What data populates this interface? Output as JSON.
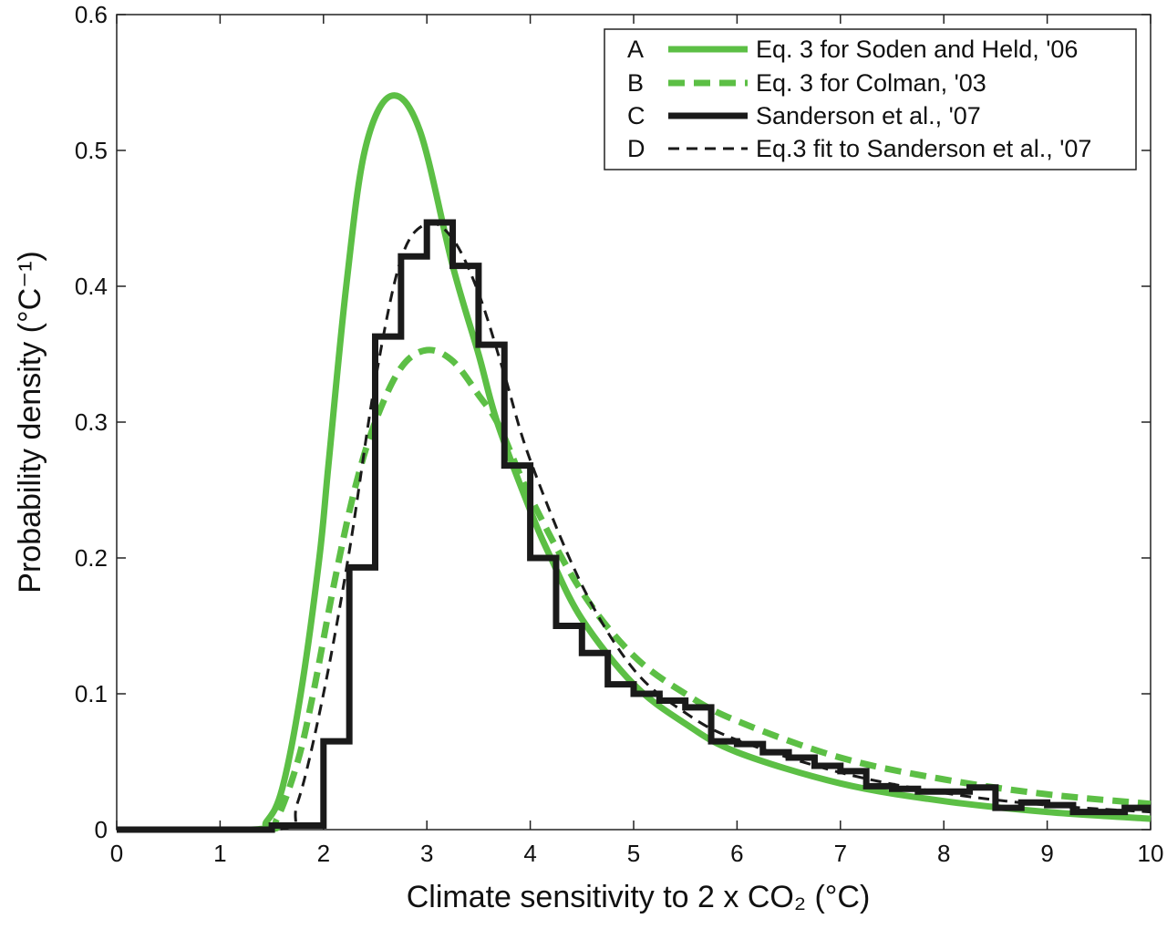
{
  "chart_data": {
    "type": "line",
    "title": "",
    "xlabel": "Climate sensitivity to 2 x CO₂ (°C)",
    "ylabel": "Probability density (°C⁻¹)",
    "xlim": [
      0,
      10
    ],
    "ylim": [
      0,
      0.6
    ],
    "xticks": [
      "0",
      "1",
      "2",
      "3",
      "4",
      "5",
      "6",
      "7",
      "8",
      "9",
      "10"
    ],
    "yticks": [
      "0",
      "0.1",
      "0.2",
      "0.3",
      "0.4",
      "0.5",
      "0.6"
    ],
    "grid": false,
    "legend_position": "top-right",
    "series": [
      {
        "letter": "A",
        "name": "Eq. 3 for Soden and Held, '06",
        "style": "solid-thick",
        "color": "#5cbf45",
        "x": [
          0,
          1.3,
          1.45,
          1.6,
          1.78,
          1.96,
          2.05,
          2.22,
          2.4,
          2.65,
          2.93,
          3.25,
          3.5,
          3.68,
          4.0,
          4.2,
          4.5,
          5.0,
          5.5,
          6.0,
          7.0,
          8.0,
          9.0,
          10.0
        ],
        "y": [
          0,
          0,
          0.006,
          0.03,
          0.1,
          0.2,
          0.27,
          0.4,
          0.5,
          0.54,
          0.515,
          0.415,
          0.35,
          0.3,
          0.235,
          0.2,
          0.155,
          0.107,
          0.078,
          0.057,
          0.034,
          0.021,
          0.013,
          0.008
        ]
      },
      {
        "letter": "B",
        "name": "Eq. 3 for Colman, '03",
        "style": "dashed-thick",
        "color": "#5cbf45",
        "x": [
          0,
          1.4,
          1.55,
          1.75,
          1.9,
          2.1,
          2.3,
          2.5,
          2.75,
          3.0,
          3.25,
          3.5,
          3.7,
          4.0,
          4.5,
          5.0,
          5.5,
          6.0,
          7.0,
          8.0,
          9.0,
          10.0
        ],
        "y": [
          0,
          0,
          0.008,
          0.05,
          0.1,
          0.18,
          0.25,
          0.3,
          0.34,
          0.353,
          0.345,
          0.32,
          0.297,
          0.245,
          0.175,
          0.128,
          0.1,
          0.08,
          0.053,
          0.037,
          0.026,
          0.019
        ]
      },
      {
        "letter": "C",
        "name": "Sanderson et al., '07",
        "style": "histogram-thick",
        "color": "#1a1a1a",
        "bin_edges": [
          0,
          1.5,
          2.0,
          2.25,
          2.5,
          2.75,
          3.0,
          3.25,
          3.5,
          3.75,
          4.0,
          4.25,
          4.5,
          4.75,
          5.0,
          5.25,
          5.5,
          5.75,
          6.0,
          6.25,
          6.5,
          6.75,
          7.0,
          7.25,
          7.5,
          7.75,
          8.0,
          8.25,
          8.5,
          8.75,
          9.0,
          9.25,
          9.5,
          9.75,
          10.0
        ],
        "values": [
          0,
          0.003,
          0.065,
          0.193,
          0.363,
          0.422,
          0.447,
          0.415,
          0.357,
          0.268,
          0.2,
          0.15,
          0.13,
          0.107,
          0.1,
          0.095,
          0.09,
          0.065,
          0.063,
          0.057,
          0.053,
          0.047,
          0.043,
          0.032,
          0.03,
          0.028,
          0.028,
          0.031,
          0.016,
          0.02,
          0.018,
          0.013,
          0.013,
          0.016
        ]
      },
      {
        "letter": "D",
        "name": "Eq.3 fit to Sanderson et al., '07",
        "style": "dashed-thin",
        "color": "#1a1a1a",
        "x": [
          0,
          1.55,
          1.75,
          2.0,
          2.25,
          2.5,
          2.75,
          3.0,
          3.25,
          3.5,
          3.75,
          4.0,
          4.5,
          5.0,
          5.5,
          6.0,
          7.0,
          8.0,
          9.0,
          10.0
        ],
        "y": [
          0,
          0,
          0.02,
          0.1,
          0.205,
          0.33,
          0.42,
          0.446,
          0.435,
          0.395,
          0.335,
          0.272,
          0.18,
          0.118,
          0.086,
          0.066,
          0.042,
          0.027,
          0.018,
          0.013
        ]
      }
    ]
  }
}
